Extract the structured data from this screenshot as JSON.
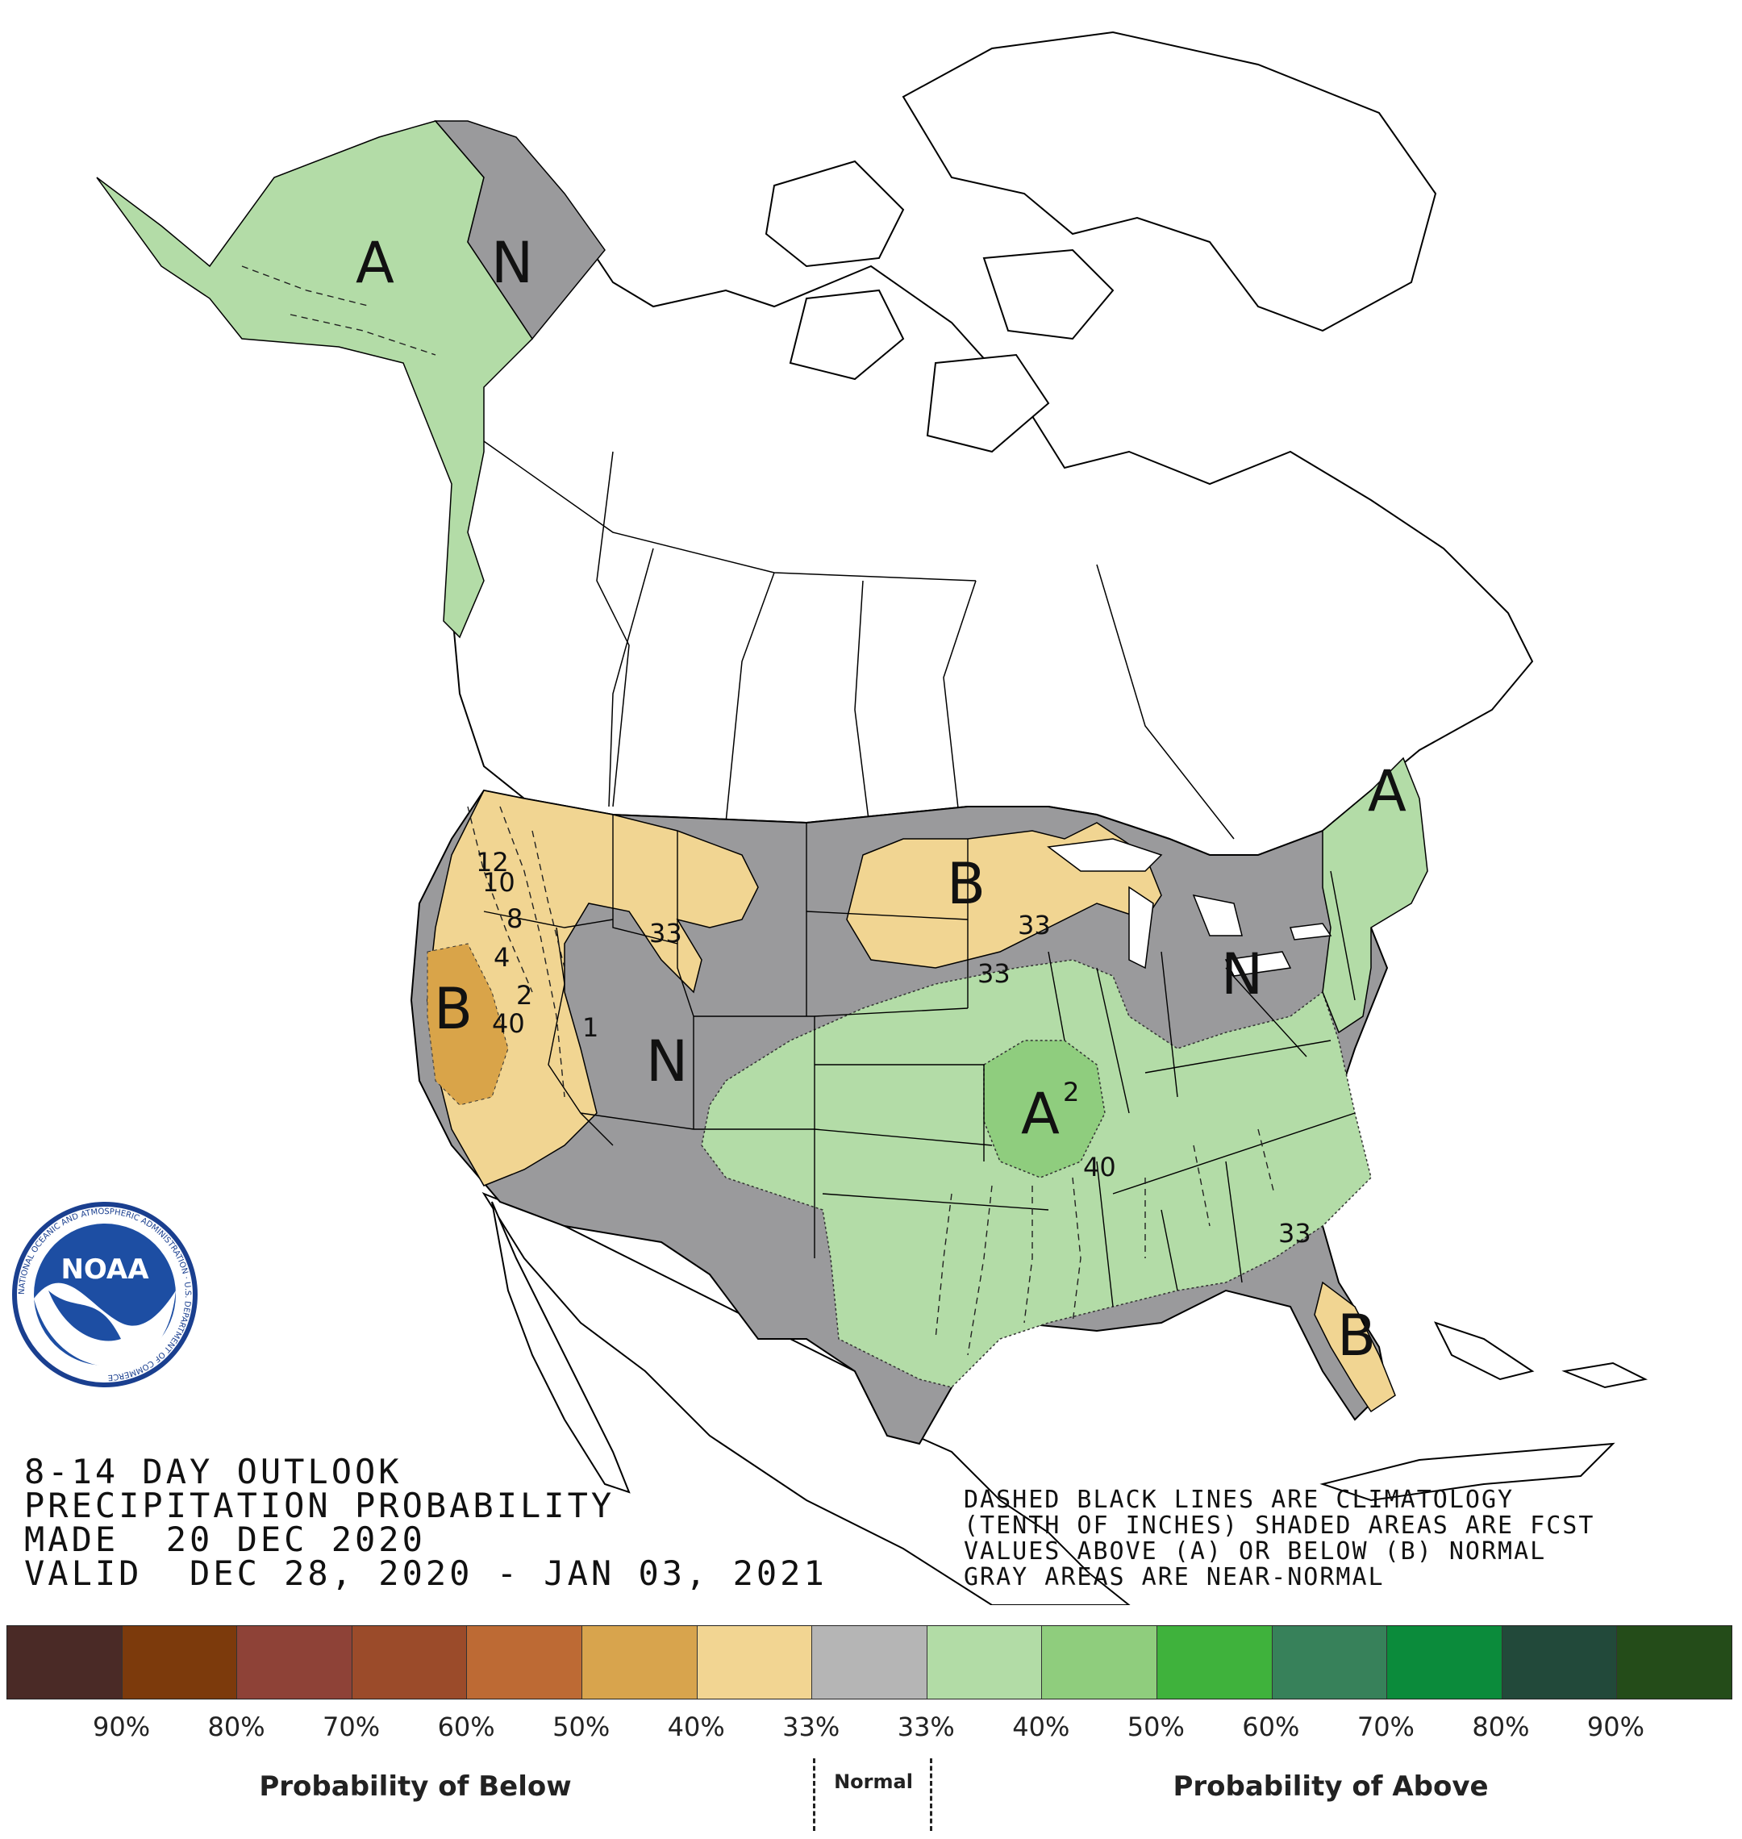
{
  "map": {
    "region_labels": [
      {
        "id": "ak-above",
        "text": "A",
        "category": "above"
      },
      {
        "id": "ak-normal",
        "text": "N",
        "category": "normal"
      },
      {
        "id": "ca-below",
        "text": "B",
        "category": "below"
      },
      {
        "id": "nplains-below",
        "text": "B",
        "category": "below"
      },
      {
        "id": "west-normal",
        "text": "N",
        "category": "normal"
      },
      {
        "id": "midwest-above",
        "text": "A",
        "category": "above"
      },
      {
        "id": "ne-above",
        "text": "A",
        "category": "above"
      },
      {
        "id": "ohio-normal",
        "text": "N",
        "category": "normal"
      },
      {
        "id": "fl-below",
        "text": "B",
        "category": "below"
      }
    ],
    "contour_labels": [
      "33",
      "33",
      "33",
      "40",
      "40",
      "33",
      "12",
      "10",
      "8",
      "2",
      "4",
      "1",
      "2"
    ],
    "colors": {
      "below_33": "#f1d592",
      "below_40": "#d9a449",
      "normal": "#9a9a9c",
      "above_33": "#b3dca7",
      "above_40": "#8fcd7e",
      "land": "#ffffff",
      "border": "#000000"
    }
  },
  "logo": {
    "text": "NOAA",
    "ring_text": "NATIONAL OCEANIC AND ATMOSPHERIC ADMINISTRATION · U.S. DEPARTMENT OF COMMERCE"
  },
  "title": {
    "line1": "8-14 DAY OUTLOOK",
    "line2": "PRECIPITATION PROBABILITY",
    "line3": "MADE  20 DEC 2020",
    "line4": "VALID  DEC 28, 2020 - JAN 03, 2021"
  },
  "notes": {
    "line1": "DASHED BLACK LINES ARE CLIMATOLOGY",
    "line2": "(TENTH OF INCHES) SHADED AREAS ARE FCST",
    "line3": "VALUES ABOVE (A) OR BELOW (B) NORMAL",
    "line4": "GRAY AREAS ARE NEAR-NORMAL"
  },
  "legend": {
    "swatches": [
      "#4a2a26",
      "#7c3a0c",
      "#8e4237",
      "#9b4b2a",
      "#bd6a34",
      "#d8a44d",
      "#f2d592",
      "#b5b5b5",
      "#b2dca6",
      "#8fcd7d",
      "#3fb23c",
      "#37815a",
      "#0b8b3b",
      "#22493a",
      "#244c19"
    ],
    "ticks": [
      "90%",
      "80%",
      "70%",
      "60%",
      "50%",
      "40%",
      "33%",
      "33%",
      "40%",
      "50%",
      "60%",
      "70%",
      "80%",
      "90%"
    ],
    "below_label": "Probability of Below",
    "normal_label": "Normal",
    "above_label": "Probability of Above"
  }
}
